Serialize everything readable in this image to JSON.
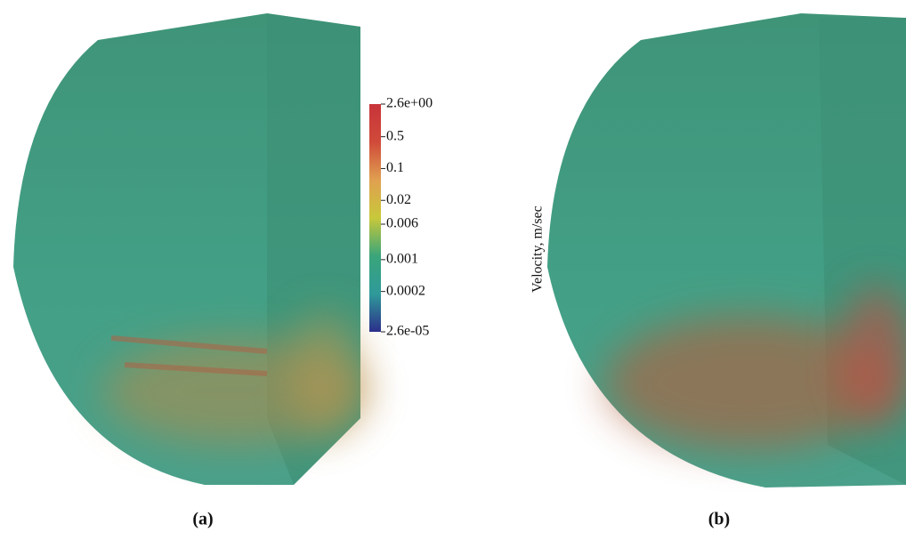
{
  "figure": {
    "panels": [
      {
        "label": "(a)"
      },
      {
        "label": "(b)"
      }
    ],
    "colorbar": {
      "label": "Velocity, m/sec",
      "scale": "log",
      "lim": [
        2.6e-05,
        2.6
      ],
      "ticks": [
        {
          "value": 2.6,
          "label": "2.6e+00"
        },
        0.5,
        0.1,
        0.02,
        0.006,
        0.001,
        0.0002,
        {
          "value": 2.6e-05,
          "label": "2.6e-05"
        }
      ],
      "colors": [
        "#2c2f8a",
        "#2f9a9a",
        "#3aa57a",
        "#c8c83a",
        "#e0a050",
        "#d04a3a",
        "#c8343a"
      ]
    }
  }
}
